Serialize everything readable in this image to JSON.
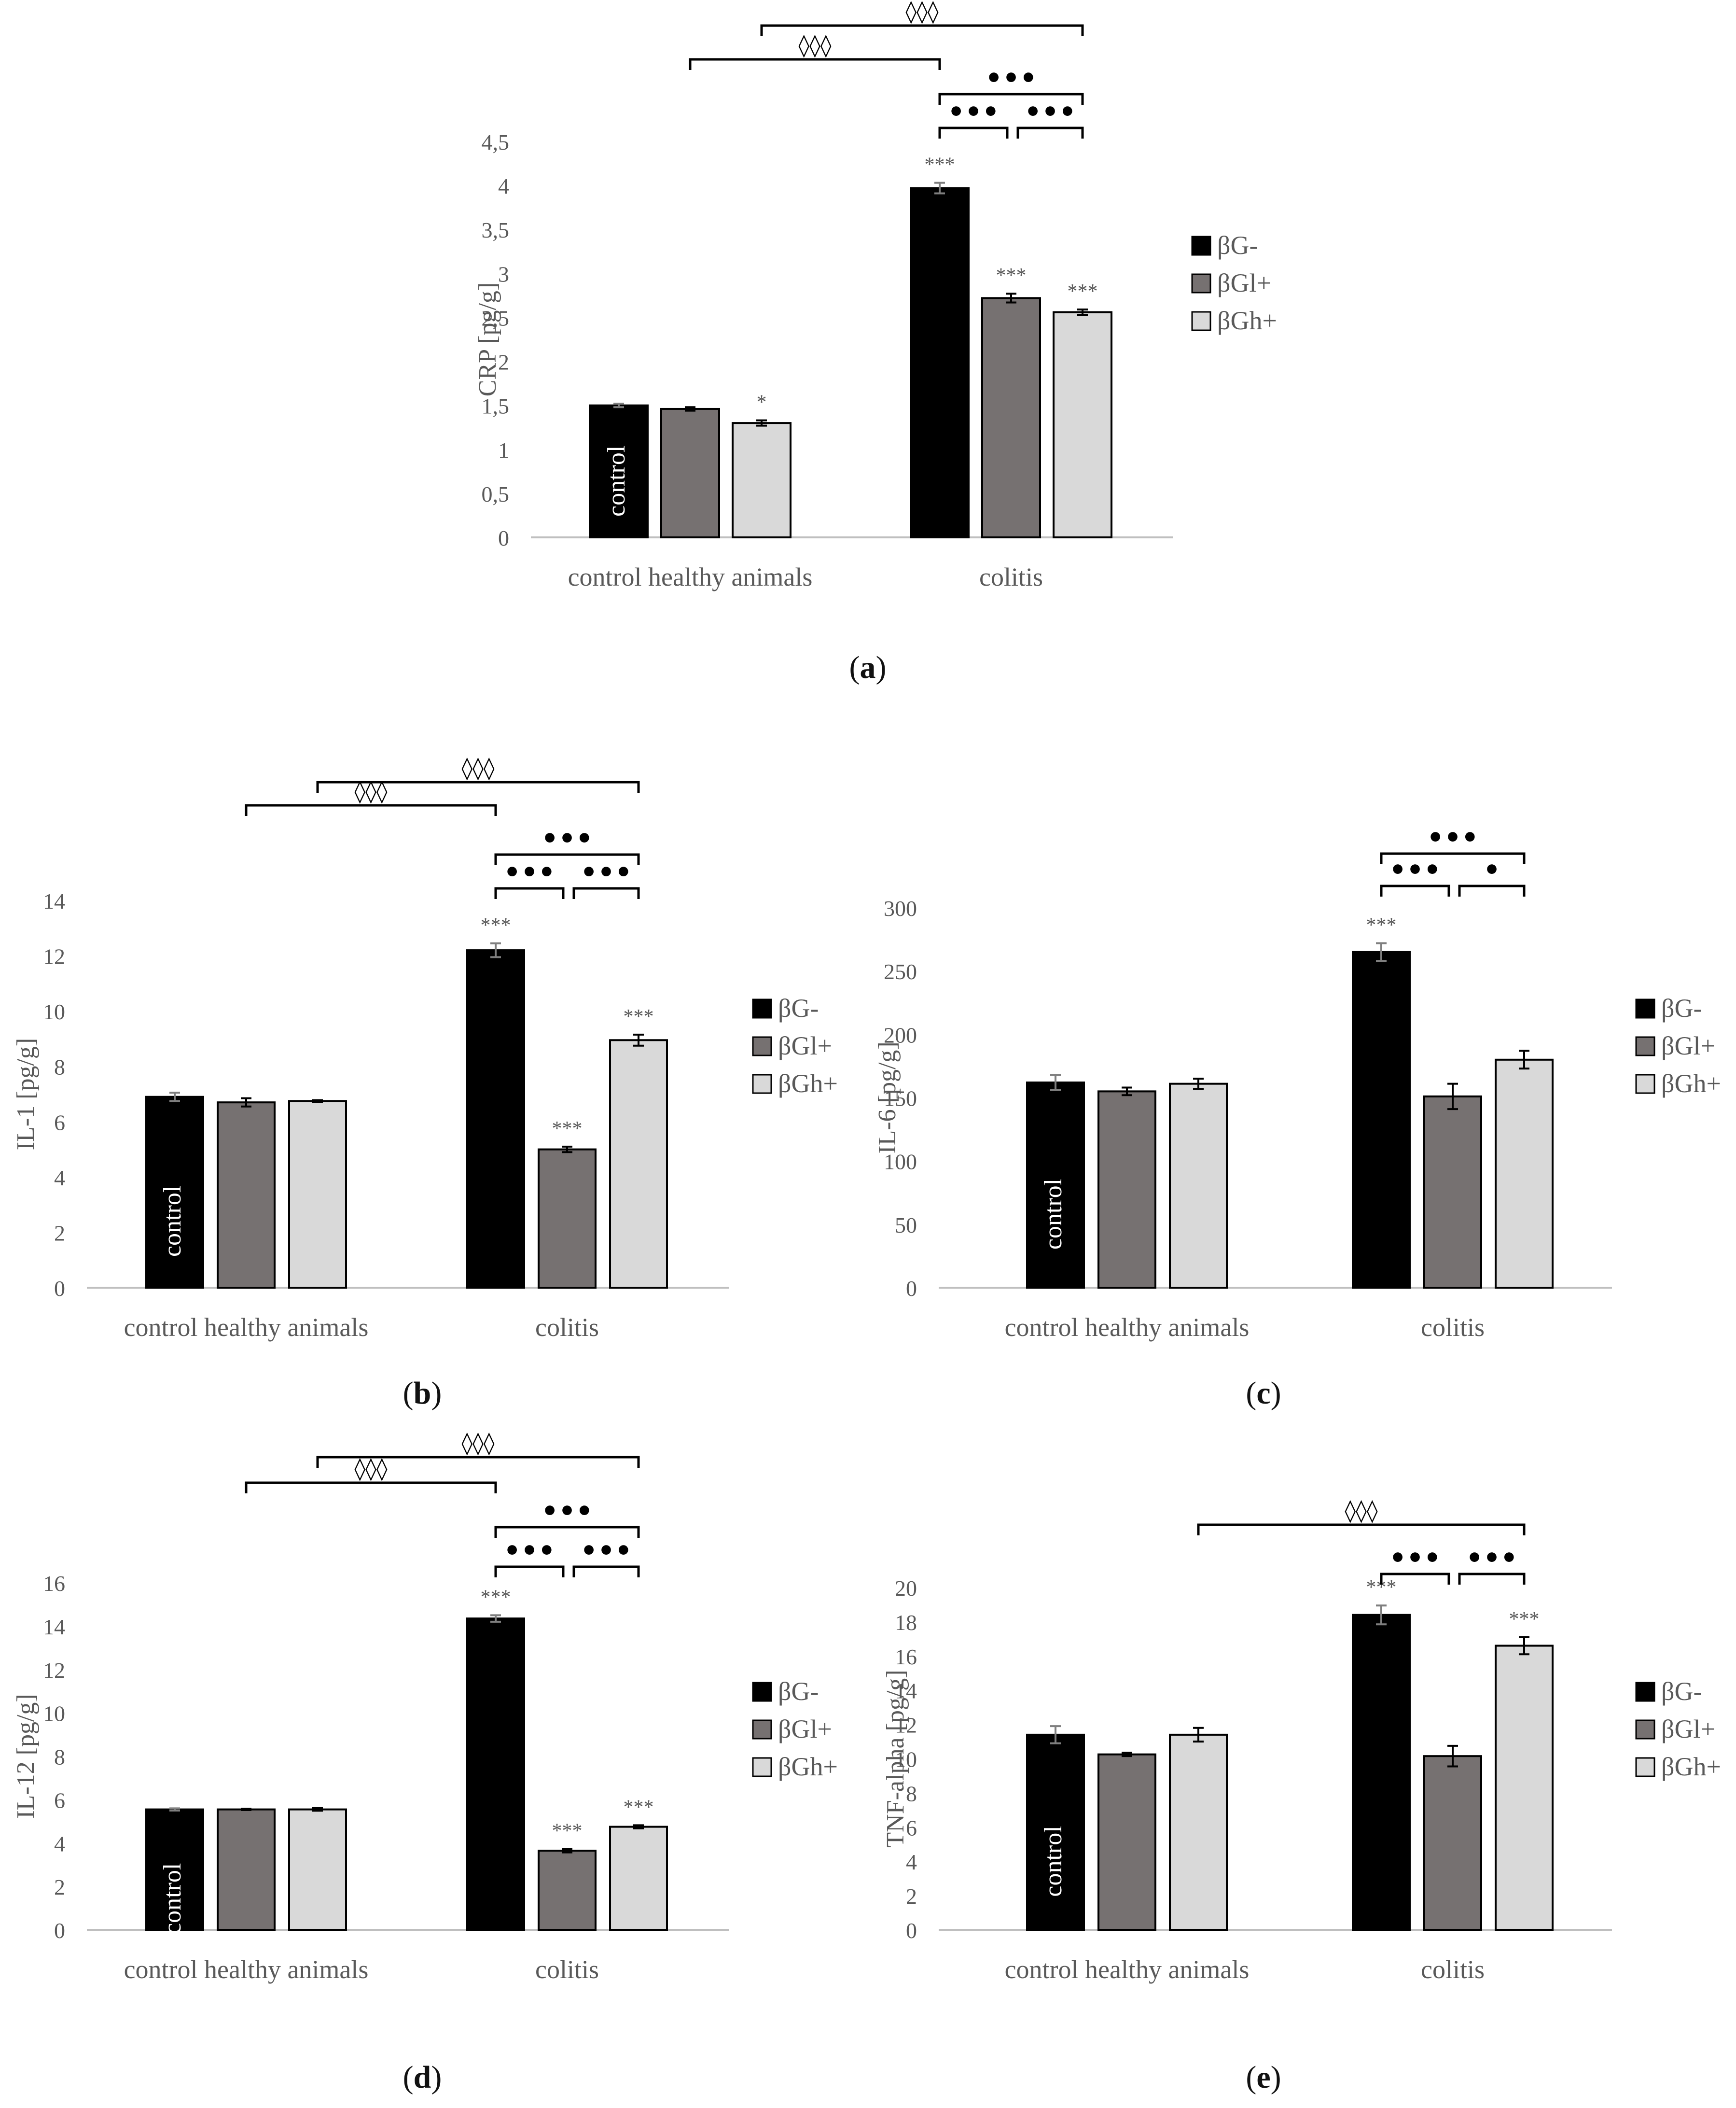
{
  "legend_colors": {
    "βG-": "#000000",
    "βGl+": "#767171",
    "βGh+": "#d9d9d9"
  },
  "chart_data": [
    {
      "id": "a",
      "type": "bar",
      "caption": "a",
      "ylabel": "CRP [pg/g]",
      "ylim": [
        0,
        4.5
      ],
      "ticks": [
        "0",
        "0,5",
        "1",
        "1,5",
        "2",
        "2,5",
        "3",
        "3,5",
        "4",
        "4,5"
      ],
      "categories": [
        "control healthy animals",
        "colitis"
      ],
      "control_label": "control",
      "series": [
        {
          "name": "βG-",
          "values": [
            1.5,
            3.97
          ],
          "errors": [
            0.02,
            0.06
          ],
          "stars": [
            "",
            "***"
          ]
        },
        {
          "name": "βGl+",
          "values": [
            1.46,
            2.72
          ],
          "errors": [
            0.02,
            0.05
          ],
          "stars": [
            "",
            "***"
          ]
        },
        {
          "name": "βGh+",
          "values": [
            1.3,
            2.56
          ],
          "errors": [
            0.03,
            0.03
          ],
          "stars": [
            "*",
            "***"
          ]
        }
      ],
      "brackets": [
        {
          "from": [
            1,
            0
          ],
          "to": [
            1,
            1
          ],
          "label": "•••"
        },
        {
          "from": [
            1,
            1
          ],
          "to": [
            1,
            2
          ],
          "label": "•••"
        },
        {
          "from": [
            1,
            0
          ],
          "to": [
            1,
            2
          ],
          "label": "•••"
        },
        {
          "from": [
            0,
            1
          ],
          "to": [
            1,
            0
          ],
          "label": "◊◊◊"
        },
        {
          "from": [
            0,
            2
          ],
          "to": [
            1,
            2
          ],
          "label": "◊◊◊"
        }
      ]
    },
    {
      "id": "b",
      "type": "bar",
      "caption": "b",
      "ylabel": "IL-1 [pg/g]",
      "ylim": [
        0,
        14
      ],
      "ticks": [
        "0",
        "2",
        "4",
        "6",
        "8",
        "10",
        "12",
        "14"
      ],
      "categories": [
        "control healthy animals",
        "colitis"
      ],
      "control_label": "control",
      "series": [
        {
          "name": "βG-",
          "values": [
            6.9,
            12.2
          ],
          "errors": [
            0.15,
            0.25
          ],
          "stars": [
            "",
            "***"
          ]
        },
        {
          "name": "βGl+",
          "values": [
            6.7,
            5.0
          ],
          "errors": [
            0.15,
            0.1
          ],
          "stars": [
            "",
            "***"
          ]
        },
        {
          "name": "βGh+",
          "values": [
            6.75,
            8.95
          ],
          "errors": [
            0.03,
            0.2
          ],
          "stars": [
            "",
            "***"
          ]
        }
      ],
      "brackets": [
        {
          "from": [
            1,
            0
          ],
          "to": [
            1,
            1
          ],
          "label": "•••"
        },
        {
          "from": [
            1,
            1
          ],
          "to": [
            1,
            2
          ],
          "label": "•••"
        },
        {
          "from": [
            1,
            0
          ],
          "to": [
            1,
            2
          ],
          "label": "•••"
        },
        {
          "from": [
            0,
            1
          ],
          "to": [
            1,
            0
          ],
          "label": "◊◊◊"
        },
        {
          "from": [
            0,
            2
          ],
          "to": [
            1,
            2
          ],
          "label": "◊◊◊"
        }
      ]
    },
    {
      "id": "c",
      "type": "bar",
      "caption": "c",
      "ylabel": "IL-6 [pg/g]",
      "ylim": [
        0,
        300
      ],
      "ticks": [
        "0",
        "50",
        "100",
        "150",
        "200",
        "250",
        "300"
      ],
      "categories": [
        "control healthy animals",
        "colitis"
      ],
      "control_label": "control",
      "series": [
        {
          "name": "βG-",
          "values": [
            162,
            265
          ],
          "errors": [
            6,
            7
          ],
          "stars": [
            "",
            "***"
          ]
        },
        {
          "name": "βGl+",
          "values": [
            155,
            151
          ],
          "errors": [
            3,
            10
          ],
          "stars": [
            "",
            ""
          ]
        },
        {
          "name": "βGh+",
          "values": [
            161,
            180
          ],
          "errors": [
            4,
            7
          ],
          "stars": [
            "",
            ""
          ]
        }
      ],
      "brackets": [
        {
          "from": [
            1,
            0
          ],
          "to": [
            1,
            1
          ],
          "label": "•••"
        },
        {
          "from": [
            1,
            1
          ],
          "to": [
            1,
            2
          ],
          "label": "•"
        },
        {
          "from": [
            1,
            0
          ],
          "to": [
            1,
            2
          ],
          "label": "•••"
        }
      ]
    },
    {
      "id": "d",
      "type": "bar",
      "caption": "d",
      "ylabel": "IL-12 [pg/g]",
      "ylim": [
        0,
        16
      ],
      "ticks": [
        "0",
        "2",
        "4",
        "6",
        "8",
        "10",
        "12",
        "14",
        "16"
      ],
      "categories": [
        "control healthy animals",
        "colitis"
      ],
      "control_label": "control",
      "series": [
        {
          "name": "βG-",
          "values": [
            5.55,
            14.35
          ],
          "errors": [
            0.05,
            0.15
          ],
          "stars": [
            "",
            "***"
          ]
        },
        {
          "name": "βGl+",
          "values": [
            5.55,
            3.65
          ],
          "errors": [
            0.03,
            0.08
          ],
          "stars": [
            "",
            "***"
          ]
        },
        {
          "name": "βGh+",
          "values": [
            5.55,
            4.75
          ],
          "errors": [
            0.06,
            0.07
          ],
          "stars": [
            "",
            "***"
          ]
        }
      ],
      "brackets": [
        {
          "from": [
            1,
            0
          ],
          "to": [
            1,
            1
          ],
          "label": "•••"
        },
        {
          "from": [
            1,
            1
          ],
          "to": [
            1,
            2
          ],
          "label": "•••"
        },
        {
          "from": [
            1,
            0
          ],
          "to": [
            1,
            2
          ],
          "label": "•••"
        },
        {
          "from": [
            0,
            1
          ],
          "to": [
            1,
            0
          ],
          "label": "◊◊◊"
        },
        {
          "from": [
            0,
            2
          ],
          "to": [
            1,
            2
          ],
          "label": "◊◊◊"
        }
      ]
    },
    {
      "id": "e",
      "type": "bar",
      "caption": "e",
      "ylabel": "TNF-alpha [pg/g]",
      "ylim": [
        0,
        20
      ],
      "ticks": [
        "0",
        "2",
        "4",
        "6",
        "8",
        "10",
        "12",
        "14",
        "16",
        "18",
        "20"
      ],
      "categories": [
        "control healthy animals",
        "colitis"
      ],
      "control_label": "control",
      "series": [
        {
          "name": "βG-",
          "values": [
            11.4,
            18.4
          ],
          "errors": [
            0.5,
            0.55
          ],
          "stars": [
            "",
            "***"
          ]
        },
        {
          "name": "βGl+",
          "values": [
            10.25,
            10.15
          ],
          "errors": [
            0.1,
            0.6
          ],
          "stars": [
            "",
            ""
          ]
        },
        {
          "name": "βGh+",
          "values": [
            11.4,
            16.6
          ],
          "errors": [
            0.4,
            0.5
          ],
          "stars": [
            "",
            "***"
          ]
        }
      ],
      "brackets": [
        {
          "from": [
            1,
            0
          ],
          "to": [
            1,
            1
          ],
          "label": "•••"
        },
        {
          "from": [
            1,
            1
          ],
          "to": [
            1,
            2
          ],
          "label": "•••"
        },
        {
          "from": [
            0,
            2
          ],
          "to": [
            1,
            2
          ],
          "label": "◊◊◊"
        }
      ]
    }
  ]
}
